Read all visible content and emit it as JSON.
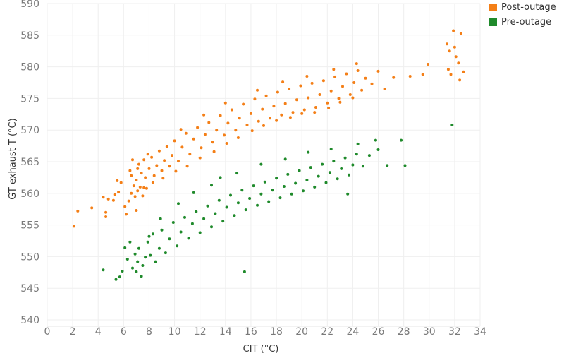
{
  "chart_data": {
    "type": "scatter",
    "title": "",
    "xlabel": "CIT (°C)",
    "ylabel": "GT exhaust T (°C)",
    "xlim": [
      0,
      34
    ],
    "ylim": [
      539,
      590
    ],
    "xticks": [
      0,
      2,
      4,
      6,
      8,
      10,
      12,
      14,
      16,
      18,
      20,
      22,
      24,
      26,
      28,
      30,
      32,
      34
    ],
    "yticks": [
      540,
      545,
      550,
      555,
      560,
      565,
      570,
      575,
      580,
      585,
      590
    ],
    "grid": true,
    "legend_position": "top-right",
    "series": [
      {
        "name": "Post-outage",
        "color": "#f47f17",
        "points": [
          [
            2.1,
            554.8
          ],
          [
            2.4,
            557.2
          ],
          [
            3.5,
            557.7
          ],
          [
            4.6,
            556.3
          ],
          [
            4.6,
            557.0
          ],
          [
            4.4,
            559.4
          ],
          [
            4.8,
            559.1
          ],
          [
            5.3,
            559.8
          ],
          [
            5.6,
            560.2
          ],
          [
            5.2,
            558.9
          ],
          [
            5.5,
            562.0
          ],
          [
            5.8,
            561.7
          ],
          [
            6.1,
            557.9
          ],
          [
            6.2,
            556.7
          ],
          [
            6.4,
            558.8
          ],
          [
            6.5,
            563.6
          ],
          [
            6.6,
            560.0
          ],
          [
            6.7,
            565.3
          ],
          [
            6.8,
            561.2
          ],
          [
            6.9,
            559.5
          ],
          [
            7.0,
            562.1
          ],
          [
            7.0,
            557.3
          ],
          [
            7.1,
            560.4
          ],
          [
            7.2,
            564.6
          ],
          [
            7.3,
            561.0
          ],
          [
            7.4,
            563.2
          ],
          [
            7.5,
            559.6
          ],
          [
            7.6,
            565.3
          ],
          [
            7.7,
            562.5
          ],
          [
            7.8,
            560.8
          ],
          [
            7.9,
            566.2
          ],
          [
            8.0,
            563.9
          ],
          [
            8.2,
            565.7
          ],
          [
            8.4,
            562.8
          ],
          [
            8.6,
            564.4
          ],
          [
            8.8,
            566.7
          ],
          [
            9.0,
            563.6
          ],
          [
            9.2,
            565.2
          ],
          [
            9.4,
            567.4
          ],
          [
            9.6,
            564.3
          ],
          [
            9.8,
            566.0
          ],
          [
            10.0,
            568.3
          ],
          [
            10.3,
            565.1
          ],
          [
            10.6,
            567.3
          ],
          [
            10.9,
            569.5
          ],
          [
            11.2,
            566.2
          ],
          [
            11.5,
            568.6
          ],
          [
            11.8,
            570.4
          ],
          [
            12.1,
            567.2
          ],
          [
            12.4,
            569.3
          ],
          [
            12.7,
            571.2
          ],
          [
            13.0,
            568.1
          ],
          [
            13.3,
            570.0
          ],
          [
            13.6,
            572.3
          ],
          [
            13.9,
            569.2
          ],
          [
            14.2,
            571.1
          ],
          [
            14.5,
            573.2
          ],
          [
            14.8,
            570.0
          ],
          [
            15.1,
            571.9
          ],
          [
            15.4,
            574.1
          ],
          [
            15.7,
            570.8
          ],
          [
            16.0,
            572.6
          ],
          [
            16.3,
            574.9
          ],
          [
            16.6,
            571.4
          ],
          [
            16.9,
            573.3
          ],
          [
            17.2,
            575.4
          ],
          [
            17.5,
            571.9
          ],
          [
            17.8,
            573.8
          ],
          [
            18.1,
            576.0
          ],
          [
            18.4,
            572.4
          ],
          [
            18.7,
            574.2
          ],
          [
            19.0,
            576.5
          ],
          [
            19.3,
            572.8
          ],
          [
            19.6,
            574.8
          ],
          [
            19.9,
            577.0
          ],
          [
            20.2,
            573.2
          ],
          [
            20.5,
            575.1
          ],
          [
            20.8,
            577.4
          ],
          [
            21.1,
            573.6
          ],
          [
            21.4,
            575.6
          ],
          [
            21.7,
            577.8
          ],
          [
            22.0,
            574.3
          ],
          [
            22.3,
            576.2
          ],
          [
            22.6,
            578.4
          ],
          [
            22.9,
            575.0
          ],
          [
            23.2,
            576.9
          ],
          [
            23.5,
            578.9
          ],
          [
            23.8,
            575.6
          ],
          [
            24.1,
            577.5
          ],
          [
            24.4,
            579.4
          ],
          [
            24.7,
            576.3
          ],
          [
            25.0,
            578.2
          ],
          [
            25.5,
            577.3
          ],
          [
            26.0,
            579.3
          ],
          [
            26.5,
            576.5
          ],
          [
            27.2,
            578.3
          ],
          [
            28.5,
            578.5
          ],
          [
            29.5,
            578.8
          ],
          [
            29.9,
            580.4
          ],
          [
            31.4,
            583.6
          ],
          [
            31.5,
            579.6
          ],
          [
            31.6,
            582.5
          ],
          [
            31.7,
            578.8
          ],
          [
            31.9,
            585.7
          ],
          [
            32.0,
            583.1
          ],
          [
            32.1,
            581.6
          ],
          [
            32.3,
            580.6
          ],
          [
            32.4,
            577.9
          ],
          [
            32.5,
            585.3
          ],
          [
            32.7,
            579.2
          ],
          [
            6.6,
            562.8
          ],
          [
            7.1,
            563.9
          ],
          [
            7.6,
            560.9
          ],
          [
            8.3,
            561.7
          ],
          [
            9.1,
            562.4
          ],
          [
            10.1,
            563.5
          ],
          [
            11.0,
            564.3
          ],
          [
            12.0,
            565.6
          ],
          [
            13.1,
            566.6
          ],
          [
            14.1,
            567.9
          ],
          [
            15.0,
            568.8
          ],
          [
            16.1,
            569.9
          ],
          [
            17.0,
            570.7
          ],
          [
            18.0,
            571.5
          ],
          [
            19.1,
            572.0
          ],
          [
            20.0,
            572.6
          ],
          [
            21.0,
            572.8
          ],
          [
            22.1,
            573.5
          ],
          [
            23.0,
            574.4
          ],
          [
            24.0,
            575.1
          ],
          [
            10.5,
            570.1
          ],
          [
            12.3,
            572.4
          ],
          [
            14.0,
            574.3
          ],
          [
            16.5,
            576.3
          ],
          [
            18.5,
            577.6
          ],
          [
            20.4,
            578.5
          ],
          [
            22.5,
            579.6
          ],
          [
            24.3,
            580.5
          ]
        ]
      },
      {
        "name": "Pre-outage",
        "color": "#1f8a2b",
        "points": [
          [
            4.4,
            547.9
          ],
          [
            5.4,
            546.4
          ],
          [
            5.7,
            546.8
          ],
          [
            5.9,
            547.7
          ],
          [
            6.1,
            551.4
          ],
          [
            6.3,
            549.6
          ],
          [
            6.5,
            552.3
          ],
          [
            6.7,
            548.2
          ],
          [
            6.9,
            550.4
          ],
          [
            7.0,
            547.6
          ],
          [
            7.1,
            549.2
          ],
          [
            7.2,
            551.3
          ],
          [
            7.4,
            546.9
          ],
          [
            7.5,
            548.6
          ],
          [
            7.7,
            549.9
          ],
          [
            7.9,
            552.3
          ],
          [
            8.1,
            550.2
          ],
          [
            8.3,
            553.6
          ],
          [
            8.5,
            549.2
          ],
          [
            8.8,
            551.3
          ],
          [
            9.0,
            554.2
          ],
          [
            9.3,
            550.6
          ],
          [
            9.6,
            552.8
          ],
          [
            9.9,
            555.4
          ],
          [
            10.2,
            551.7
          ],
          [
            10.5,
            553.9
          ],
          [
            10.8,
            556.2
          ],
          [
            11.1,
            552.9
          ],
          [
            11.4,
            555.2
          ],
          [
            11.7,
            557.1
          ],
          [
            12.0,
            553.8
          ],
          [
            12.3,
            556.0
          ],
          [
            12.6,
            558.0
          ],
          [
            12.9,
            554.7
          ],
          [
            13.2,
            556.8
          ],
          [
            13.5,
            558.9
          ],
          [
            13.8,
            555.6
          ],
          [
            14.1,
            557.8
          ],
          [
            14.4,
            559.7
          ],
          [
            14.7,
            556.5
          ],
          [
            15.0,
            558.5
          ],
          [
            15.3,
            560.5
          ],
          [
            15.6,
            557.4
          ],
          [
            15.9,
            559.2
          ],
          [
            16.2,
            561.2
          ],
          [
            16.5,
            558.1
          ],
          [
            16.8,
            559.9
          ],
          [
            17.1,
            561.8
          ],
          [
            17.4,
            558.7
          ],
          [
            17.7,
            560.5
          ],
          [
            18.0,
            562.4
          ],
          [
            18.3,
            559.3
          ],
          [
            18.6,
            561.1
          ],
          [
            18.9,
            563.0
          ],
          [
            19.2,
            559.9
          ],
          [
            19.5,
            561.6
          ],
          [
            19.8,
            563.6
          ],
          [
            20.1,
            560.4
          ],
          [
            20.4,
            562.1
          ],
          [
            20.7,
            564.1
          ],
          [
            21.0,
            561.0
          ],
          [
            21.3,
            562.7
          ],
          [
            21.6,
            564.6
          ],
          [
            21.9,
            561.7
          ],
          [
            22.2,
            563.3
          ],
          [
            22.5,
            565.1
          ],
          [
            22.8,
            562.3
          ],
          [
            23.1,
            563.9
          ],
          [
            23.4,
            565.6
          ],
          [
            23.7,
            562.9
          ],
          [
            24.0,
            564.5
          ],
          [
            24.3,
            566.2
          ],
          [
            24.8,
            564.3
          ],
          [
            25.3,
            566.0
          ],
          [
            25.8,
            568.4
          ],
          [
            26.0,
            566.9
          ],
          [
            26.7,
            564.4
          ],
          [
            27.8,
            568.4
          ],
          [
            28.1,
            564.4
          ],
          [
            31.8,
            570.8
          ],
          [
            15.5,
            547.6
          ],
          [
            23.6,
            559.9
          ],
          [
            24.4,
            567.8
          ],
          [
            13.6,
            562.5
          ],
          [
            11.5,
            560.1
          ],
          [
            10.3,
            558.4
          ],
          [
            8.9,
            556.0
          ],
          [
            8.0,
            553.2
          ],
          [
            12.9,
            561.3
          ],
          [
            14.9,
            563.2
          ],
          [
            16.8,
            564.6
          ],
          [
            18.7,
            565.4
          ],
          [
            20.5,
            566.5
          ],
          [
            22.3,
            567.0
          ]
        ]
      }
    ]
  }
}
